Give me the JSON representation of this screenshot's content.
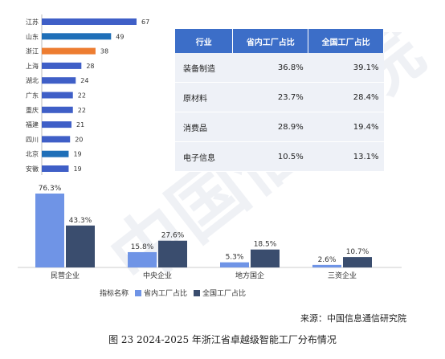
{
  "colors": {
    "blue": "#3f5fc7",
    "highlight_blue": "#1f6fb8",
    "orange": "#ed7d31",
    "light_blue": "#6f94e6",
    "dark_navy": "#3a4d6e",
    "table_header": "#3c6ec8",
    "table_row": "#eef1f7"
  },
  "chart_data": [
    {
      "type": "bar",
      "orientation": "horizontal",
      "categories": [
        "江苏",
        "山东",
        "浙江",
        "上海",
        "湖北",
        "广东",
        "重庆",
        "福建",
        "四川",
        "北京",
        "安徽"
      ],
      "values": [
        67,
        49,
        38,
        28,
        24,
        22,
        22,
        21,
        20,
        19,
        19
      ],
      "bar_colors": [
        "blue",
        "highlight_blue",
        "orange",
        "blue",
        "blue",
        "blue",
        "blue",
        "blue",
        "blue",
        "highlight_blue",
        "blue"
      ]
    },
    {
      "type": "table",
      "columns": [
        "行业",
        "省内工厂占比",
        "全国工厂占比"
      ],
      "rows": [
        [
          "装备制造",
          "36.8%",
          "39.1%"
        ],
        [
          "原材料",
          "23.7%",
          "28.4%"
        ],
        [
          "消费品",
          "28.9%",
          "19.4%"
        ],
        [
          "电子信息",
          "10.5%",
          "13.1%"
        ]
      ]
    },
    {
      "type": "bar",
      "orientation": "vertical",
      "categories": [
        "民营企业",
        "中央企业",
        "地方国企",
        "三资企业"
      ],
      "series": [
        {
          "name": "省内工厂占比",
          "values": [
            76.3,
            15.8,
            5.3,
            2.6
          ],
          "labels": [
            "76.3%",
            "15.8%",
            "5.3%",
            "2.6%"
          ],
          "color": "light_blue"
        },
        {
          "name": "全国工厂占比",
          "values": [
            43.3,
            27.6,
            18.5,
            10.7
          ],
          "labels": [
            "43.3%",
            "27.6%",
            "18.5%",
            "10.7%"
          ],
          "color": "dark_navy"
        }
      ],
      "legend_title": "指标名称",
      "legend_position": "bottom"
    }
  ],
  "source": "来源：中国信息通信研究院",
  "caption": "图 23 2024-2025 年浙江省卓越级智能工厂分布情况",
  "watermark": "中国信通院"
}
